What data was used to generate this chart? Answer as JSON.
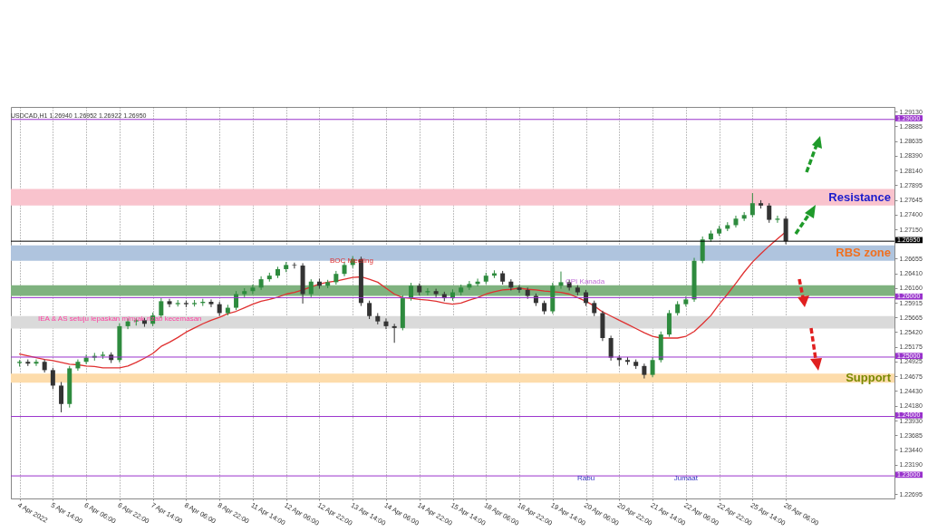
{
  "chart_data": {
    "type": "candlestick",
    "title": "USDCAD,H1  1.26940 1.26952 1.26922 1.26950",
    "categories": [
      "4 Apr 2022",
      null,
      null,
      null,
      "5 Apr 14:00",
      null,
      null,
      null,
      "6 Apr 06:00",
      null,
      null,
      null,
      "6 Apr 22:00",
      null,
      null,
      null,
      "7 Apr 14:00",
      null,
      null,
      null,
      "8 Apr 06:00",
      null,
      null,
      null,
      "8 Apr 22:00",
      null,
      null,
      null,
      "11 Apr 14:00",
      null,
      null,
      null,
      "12 Apr 06:00",
      null,
      null,
      null,
      "12 Apr 22:00",
      null,
      null,
      null,
      "13 Apr 14:00",
      null,
      null,
      null,
      "14 Apr 06:00",
      null,
      null,
      null,
      "14 Apr 22:00",
      null,
      null,
      null,
      "15 Apr 14:00",
      null,
      null,
      null,
      "18 Apr 06:00",
      null,
      null,
      null,
      "18 Apr 22:00",
      null,
      null,
      null,
      "19 Apr 14:00",
      null,
      null,
      null,
      "20 Apr 06:00",
      null,
      null,
      null,
      "20 Apr 22:00",
      null,
      null,
      null,
      "21 Apr 14:00",
      null,
      null,
      null,
      "22 Apr 06:00",
      null,
      null,
      null,
      "22 Apr 22:00",
      null,
      null,
      null,
      "25 Apr 14:00",
      null,
      null,
      null,
      "26 Apr 06:00"
    ],
    "ohlc": [
      [
        1.249,
        1.2495,
        1.2484,
        1.2492
      ],
      [
        1.2492,
        1.2496,
        1.2485,
        1.2489
      ],
      [
        1.2489,
        1.2496,
        1.2485,
        1.2492
      ],
      [
        1.2492,
        1.2496,
        1.2474,
        1.2478
      ],
      [
        1.2478,
        1.2482,
        1.2446,
        1.2452
      ],
      [
        1.2452,
        1.2458,
        1.2407,
        1.2421
      ],
      [
        1.2421,
        1.2485,
        1.2415,
        1.2481
      ],
      [
        1.2481,
        1.2496,
        1.2477,
        1.2492
      ],
      [
        1.2492,
        1.2504,
        1.2488,
        1.2499
      ],
      [
        1.2499,
        1.2507,
        1.2494,
        1.2502
      ],
      [
        1.2502,
        1.2509,
        1.2497,
        1.2504
      ],
      [
        1.2504,
        1.2508,
        1.249,
        1.2495
      ],
      [
        1.2495,
        1.2557,
        1.2491,
        1.2552
      ],
      [
        1.2552,
        1.2565,
        1.2547,
        1.256
      ],
      [
        1.256,
        1.2566,
        1.2553,
        1.2562
      ],
      [
        1.2562,
        1.2566,
        1.2551,
        1.2556
      ],
      [
        1.2556,
        1.2575,
        1.2552,
        1.257
      ],
      [
        1.257,
        1.2599,
        1.2566,
        1.2594
      ],
      [
        1.2594,
        1.2598,
        1.2584,
        1.2589
      ],
      [
        1.2589,
        1.2596,
        1.2585,
        1.2591
      ],
      [
        1.2591,
        1.2595,
        1.2584,
        1.2589
      ],
      [
        1.2589,
        1.2596,
        1.2585,
        1.2591
      ],
      [
        1.2591,
        1.2598,
        1.2586,
        1.2593
      ],
      [
        1.2593,
        1.2597,
        1.2584,
        1.2589
      ],
      [
        1.2589,
        1.2593,
        1.2569,
        1.2574
      ],
      [
        1.2574,
        1.2588,
        1.257,
        1.2583
      ],
      [
        1.2583,
        1.2611,
        1.2579,
        1.2606
      ],
      [
        1.2606,
        1.2616,
        1.2601,
        1.2611
      ],
      [
        1.2611,
        1.2622,
        1.2606,
        1.2617
      ],
      [
        1.2617,
        1.2636,
        1.2613,
        1.2631
      ],
      [
        1.2631,
        1.2642,
        1.2627,
        1.2637
      ],
      [
        1.2637,
        1.2652,
        1.2633,
        1.2648
      ],
      [
        1.2648,
        1.266,
        1.2643,
        1.2655
      ],
      [
        1.2655,
        1.2659,
        1.2649,
        1.2654
      ],
      [
        1.2654,
        1.2658,
        1.259,
        1.2606
      ],
      [
        1.2606,
        1.2631,
        1.2601,
        1.2627
      ],
      [
        1.2627,
        1.2632,
        1.2615,
        1.262
      ],
      [
        1.262,
        1.263,
        1.2616,
        1.2626
      ],
      [
        1.2626,
        1.2645,
        1.2622,
        1.264
      ],
      [
        1.264,
        1.266,
        1.2636,
        1.2655
      ],
      [
        1.2655,
        1.267,
        1.265,
        1.2665
      ],
      [
        1.2665,
        1.2669,
        1.2586,
        1.2591
      ],
      [
        1.2591,
        1.2595,
        1.2564,
        1.2569
      ],
      [
        1.2569,
        1.2574,
        1.2555,
        1.256
      ],
      [
        1.256,
        1.2565,
        1.2547,
        1.2552
      ],
      [
        1.2552,
        1.2556,
        1.2524,
        1.2549
      ],
      [
        1.2549,
        1.2604,
        1.2545,
        1.2599
      ],
      [
        1.2599,
        1.2625,
        1.2595,
        1.262
      ],
      [
        1.262,
        1.2624,
        1.2604,
        1.2609
      ],
      [
        1.2609,
        1.2616,
        1.2604,
        1.2611
      ],
      [
        1.2611,
        1.2615,
        1.2601,
        1.2606
      ],
      [
        1.2606,
        1.261,
        1.2594,
        1.2599
      ],
      [
        1.2599,
        1.2614,
        1.2595,
        1.2609
      ],
      [
        1.2609,
        1.2622,
        1.2604,
        1.2617
      ],
      [
        1.2617,
        1.2628,
        1.2613,
        1.2623
      ],
      [
        1.2623,
        1.2632,
        1.2619,
        1.2627
      ],
      [
        1.2627,
        1.2642,
        1.2623,
        1.2637
      ],
      [
        1.2637,
        1.2646,
        1.2633,
        1.2641
      ],
      [
        1.2641,
        1.2645,
        1.2622,
        1.2627
      ],
      [
        1.2627,
        1.2631,
        1.2612,
        1.2617
      ],
      [
        1.2617,
        1.2621,
        1.2608,
        1.2613
      ],
      [
        1.2613,
        1.2617,
        1.2598,
        1.2603
      ],
      [
        1.2603,
        1.2607,
        1.2586,
        1.2591
      ],
      [
        1.2591,
        1.2595,
        1.2572,
        1.2577
      ],
      [
        1.2577,
        1.2625,
        1.2573,
        1.262
      ],
      [
        1.262,
        1.2644,
        1.2615,
        1.2626
      ],
      [
        1.2626,
        1.263,
        1.2612,
        1.2617
      ],
      [
        1.2617,
        1.2621,
        1.2604,
        1.2609
      ],
      [
        1.2609,
        1.2613,
        1.2586,
        1.2591
      ],
      [
        1.2591,
        1.2595,
        1.2569,
        1.2574
      ],
      [
        1.2574,
        1.2578,
        1.2527,
        1.2532
      ],
      [
        1.2532,
        1.2536,
        1.2494,
        1.2499
      ],
      [
        1.2499,
        1.2503,
        1.2485,
        1.2495
      ],
      [
        1.2495,
        1.25,
        1.2487,
        1.2492
      ],
      [
        1.2492,
        1.2496,
        1.248,
        1.2485
      ],
      [
        1.2485,
        1.2489,
        1.2464,
        1.247
      ],
      [
        1.247,
        1.25,
        1.2466,
        1.2495
      ],
      [
        1.2495,
        1.2543,
        1.2491,
        1.2538
      ],
      [
        1.2538,
        1.2579,
        1.2534,
        1.2574
      ],
      [
        1.2574,
        1.2594,
        1.257,
        1.2589
      ],
      [
        1.2589,
        1.2602,
        1.2585,
        1.2597
      ],
      [
        1.2597,
        1.2667,
        1.2593,
        1.2662
      ],
      [
        1.2662,
        1.2703,
        1.2658,
        1.2698
      ],
      [
        1.2698,
        1.2713,
        1.2694,
        1.2708
      ],
      [
        1.2708,
        1.2721,
        1.2704,
        1.2716
      ],
      [
        1.2716,
        1.2727,
        1.2712,
        1.2722
      ],
      [
        1.2722,
        1.2738,
        1.2718,
        1.2733
      ],
      [
        1.2733,
        1.2744,
        1.2729,
        1.2739
      ],
      [
        1.2739,
        1.2776,
        1.2735,
        1.2759
      ],
      [
        1.2759,
        1.2764,
        1.275,
        1.2755
      ],
      [
        1.2755,
        1.2759,
        1.2726,
        1.2731
      ],
      [
        1.2731,
        1.2738,
        1.2726,
        1.2733
      ],
      [
        1.2733,
        1.2737,
        1.269,
        1.2695
      ]
    ],
    "colors": [
      "#2e8b3e",
      "#333333",
      "#2e8b3e",
      "#333333",
      "#333333",
      "#333333",
      "#2e8b3e",
      "#2e8b3e",
      "#2e8b3e",
      "#2e8b3e",
      "#2e8b3e",
      "#333333",
      "#2e8b3e",
      "#2e8b3e",
      "#2e8b3e",
      "#333333",
      "#2e8b3e",
      "#2e8b3e",
      "#333333",
      "#2e8b3e",
      "#333333",
      "#2e8b3e",
      "#2e8b3e",
      "#333333",
      "#333333",
      "#2e8b3e",
      "#2e8b3e",
      "#2e8b3e",
      "#2e8b3e",
      "#2e8b3e",
      "#2e8b3e",
      "#2e8b3e",
      "#2e8b3e",
      "#333333",
      "#333333",
      "#2e8b3e",
      "#333333",
      "#2e8b3e",
      "#2e8b3e",
      "#2e8b3e",
      "#2e8b3e",
      "#333333",
      "#333333",
      "#333333",
      "#333333",
      "#333333",
      "#2e8b3e",
      "#2e8b3e",
      "#333333",
      "#2e8b3e",
      "#333333",
      "#333333",
      "#2e8b3e",
      "#2e8b3e",
      "#2e8b3e",
      "#2e8b3e",
      "#2e8b3e",
      "#2e8b3e",
      "#333333",
      "#333333",
      "#333333",
      "#333333",
      "#333333",
      "#333333",
      "#2e8b3e",
      "#2e8b3e",
      "#333333",
      "#333333",
      "#333333",
      "#333333",
      "#333333",
      "#333333",
      "#333333",
      "#333333",
      "#333333",
      "#333333",
      "#2e8b3e",
      "#2e8b3e",
      "#2e8b3e",
      "#2e8b3e",
      "#2e8b3e",
      "#2e8b3e",
      "#2e8b3e",
      "#2e8b3e",
      "#2e8b3e",
      "#2e8b3e",
      "#2e8b3e",
      "#2e8b3e",
      "#2e8b3e",
      "#333333",
      "#333333",
      "#2e8b3e",
      "#333333"
    ],
    "series": [
      {
        "type": "line",
        "color": "#e03030",
        "values": [
          1.2505,
          1.2502,
          1.2499,
          1.2496,
          1.2494,
          1.2491,
          1.2488,
          1.2487,
          1.2485,
          1.2484,
          1.2482,
          1.2482,
          1.2482,
          1.2485,
          1.2491,
          1.2498,
          1.2506,
          1.2518,
          1.2525,
          1.2533,
          1.2542,
          1.2549,
          1.2556,
          1.2562,
          1.2567,
          1.2573,
          1.2577,
          1.2583,
          1.2589,
          1.2594,
          1.2597,
          1.2601,
          1.2606,
          1.2609,
          1.2613,
          1.2618,
          1.2623,
          1.2626,
          1.2628,
          1.2631,
          1.2634,
          1.2635,
          1.2631,
          1.2626,
          1.2616,
          1.2606,
          1.26,
          1.2599,
          1.2597,
          1.2596,
          1.2594,
          1.2591,
          1.2589,
          1.2591,
          1.2596,
          1.26,
          1.2606,
          1.261,
          1.2613,
          1.2614,
          1.2616,
          1.2614,
          1.2613,
          1.2611,
          1.261,
          1.2609,
          1.2606,
          1.26,
          1.2594,
          1.2586,
          1.2576,
          1.2569,
          1.2562,
          1.2555,
          1.2548,
          1.2541,
          1.2535,
          1.2532,
          1.2532,
          1.2532,
          1.2535,
          1.2543,
          1.2556,
          1.257,
          1.2589,
          1.2606,
          1.2624,
          1.2643,
          1.266,
          1.2674,
          1.2687,
          1.2699,
          1.2711
        ]
      }
    ],
    "ylim": [
      1.2262,
      1.2921
    ],
    "yticks": [
      {
        "value": 1.2913,
        "label": "1.29130"
      },
      {
        "value": 1.28885,
        "label": "1.28885"
      },
      {
        "value": 1.28635,
        "label": "1.28635"
      },
      {
        "value": 1.2839,
        "label": "1.28390"
      },
      {
        "value": 1.2814,
        "label": "1.28140"
      },
      {
        "value": 1.27895,
        "label": "1.27895"
      },
      {
        "value": 1.27645,
        "label": "1.27645"
      },
      {
        "value": 1.274,
        "label": "1.27400"
      },
      {
        "value": 1.2715,
        "label": "1.27150"
      },
      {
        "value": 1.26655,
        "label": "1.26655"
      },
      {
        "value": 1.2641,
        "label": "1.26410"
      },
      {
        "value": 1.2616,
        "label": "1.26160"
      },
      {
        "value": 1.25915,
        "label": "1.25915"
      },
      {
        "value": 1.25665,
        "label": "1.25665"
      },
      {
        "value": 1.2542,
        "label": "1.25420"
      },
      {
        "value": 1.25175,
        "label": "1.25175"
      },
      {
        "value": 1.24925,
        "label": "1.24925"
      },
      {
        "value": 1.24675,
        "label": "1.24675"
      },
      {
        "value": 1.2443,
        "label": "1.24430"
      },
      {
        "value": 1.2418,
        "label": "1.24180"
      },
      {
        "value": 1.2393,
        "label": "1.23930"
      },
      {
        "value": 1.23685,
        "label": "1.23685"
      },
      {
        "value": 1.2344,
        "label": "1.23440"
      },
      {
        "value": 1.2319,
        "label": "1.23190"
      },
      {
        "value": 1.22695,
        "label": "1.22695"
      }
    ],
    "grid": "x",
    "bands": [
      {
        "axis": "y",
        "from": 1.2755,
        "to": 1.2783,
        "label": "Resistance",
        "color": "#f9c3cd"
      },
      {
        "axis": "y",
        "from": 1.2662,
        "to": 1.2688,
        "label": "RBS zone",
        "color": "#afc4de"
      },
      {
        "axis": "y",
        "from": 1.2603,
        "to": 1.2621,
        "color": "#7fb27f"
      },
      {
        "axis": "y",
        "from": 1.2548,
        "to": 1.2569,
        "color": "#dadada"
      },
      {
        "axis": "y",
        "from": 1.2457,
        "to": 1.2472,
        "label": "Support",
        "color": "#fddcab"
      }
    ],
    "ref_lines": [
      {
        "axis": "y",
        "value": 1.29,
        "label": "1.29000",
        "color": "#9932cc"
      },
      {
        "axis": "y",
        "value": 1.26,
        "label": "1.26000",
        "color": "#9932cc"
      },
      {
        "axis": "y",
        "value": 1.25,
        "label": "1.25000",
        "color": "#9932cc"
      },
      {
        "axis": "y",
        "value": 1.24,
        "label": "1.24000",
        "color": "#9932cc"
      },
      {
        "axis": "y",
        "value": 1.23,
        "label": "1.23000",
        "color": "#9932cc"
      },
      {
        "axis": "y",
        "value": 1.2695,
        "label": "1.26950",
        "color": "#000000"
      }
    ],
    "annotations": [
      "BOC Meeting",
      "CPI Kanada",
      "IEA & AS setuju lepaskan minyak rizab kecemasan",
      {
        "text": "Rabu",
        "x": "20 Apr 06:00",
        "y": 1.2296
      },
      {
        "text": "Jumaat",
        "x": "22 Apr 06:00",
        "y": 1.2296
      }
    ]
  }
}
